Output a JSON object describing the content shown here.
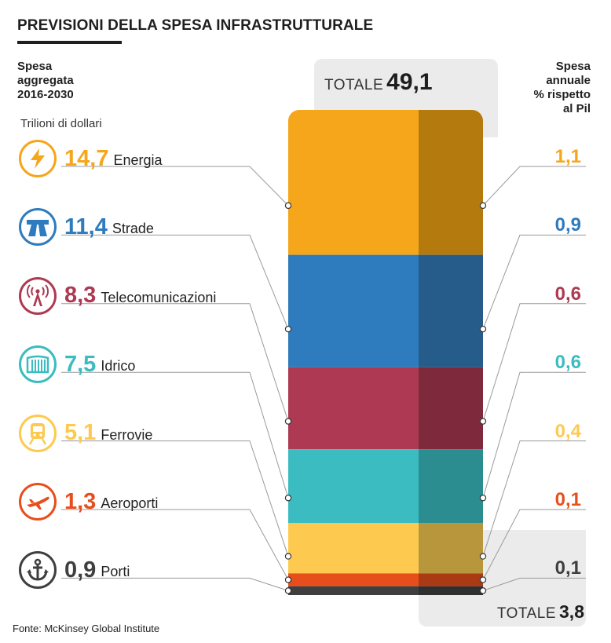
{
  "header": {
    "title": "PREVISIONI DELLA SPESA INFRASTRUTTURALE",
    "left_lines": [
      "Spesa",
      "aggregata",
      "2016-2030"
    ],
    "units": "Trilioni di dollari",
    "right_lines": [
      "Spesa",
      "annuale",
      "% rispetto",
      "al Pil"
    ]
  },
  "totals": {
    "label": "TOTALE",
    "aggregate": "49,1",
    "annual": "3,8"
  },
  "source": "Fonte: McKinsey Global Institute",
  "chart_data": {
    "type": "bar",
    "stacked": true,
    "unit_left": "Trilioni di dollari",
    "unit_right": "% rispetto al Pil",
    "categories": [
      "Energia",
      "Strade",
      "Telecomunicazioni",
      "Idrico",
      "Ferrovie",
      "Aeroporti",
      "Porti"
    ],
    "values": [
      14.7,
      11.4,
      8.3,
      7.5,
      5.1,
      1.3,
      0.9
    ],
    "labels": [
      "14,7",
      "11,4",
      "8,3",
      "7,5",
      "5,1",
      "1,3",
      "0,9"
    ],
    "pil_values": [
      1.1,
      0.9,
      0.6,
      0.6,
      0.4,
      0.1,
      0.1
    ],
    "pil_labels": [
      "1,1",
      "0,9",
      "0,6",
      "0,6",
      "0,4",
      "0,1",
      "0,1"
    ],
    "icons": [
      "lightning-icon",
      "highway-icon",
      "antenna-icon",
      "dam-icon",
      "train-icon",
      "airplane-icon",
      "anchor-icon"
    ],
    "colors": [
      "#f5a61a",
      "#2e7bbd",
      "#ad3a52",
      "#3bbcc1",
      "#fdca4f",
      "#e84e1b",
      "#3f3f3f"
    ],
    "shade_colors": [
      "#b57a0d",
      "#255c8a",
      "#7e2a3c",
      "#2b8d90",
      "#b8963c",
      "#aa3a14",
      "#2f2f2f"
    ],
    "total_aggregate": 49.1,
    "total_annual": 3.8
  }
}
